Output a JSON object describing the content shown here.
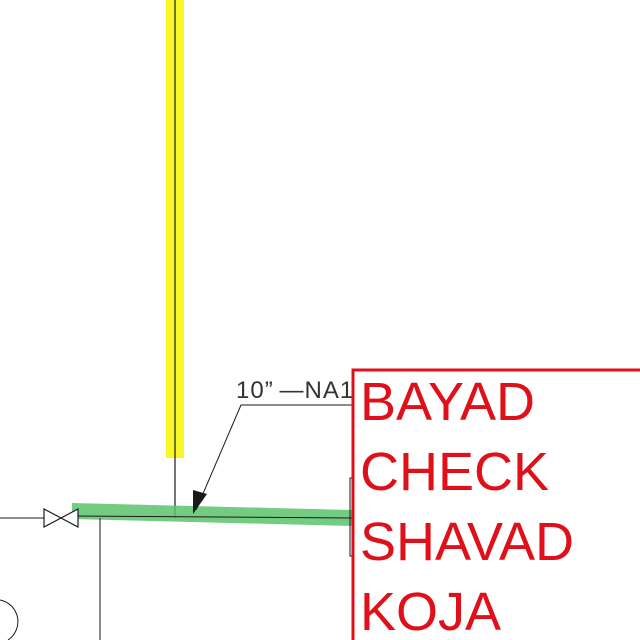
{
  "drawing": {
    "line_label": "10” —NA1",
    "note_lines": [
      "BAYAD",
      "CHECK",
      "SHAVAD",
      "KOJA"
    ],
    "colors": {
      "background": "#ffffff",
      "linework": "#1a1a1a",
      "highlight_yellow": "#f7f72a",
      "highlight_green": "#5cc36c",
      "note_red": "#e0101a"
    },
    "symbols": [
      "gate-valve-icon",
      "leader-arrow-icon"
    ]
  }
}
